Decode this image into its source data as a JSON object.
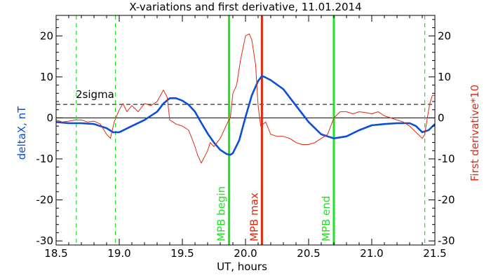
{
  "chart_data": {
    "type": "line",
    "title": "X-variations and first derivative, 11.01.2014",
    "xlabel": "UT, hours",
    "ylabel_left": "deltaX, nT",
    "ylabel_right": "First derivative*10",
    "xlim": [
      18.5,
      21.5
    ],
    "ylim": [
      -31,
      25
    ],
    "x_ticks": [
      "18.5",
      "19.0",
      "19.5",
      "20.0",
      "20.5",
      "21.0",
      "21.5"
    ],
    "y_ticks": [
      "-30",
      "-20",
      "-10",
      "0",
      "10",
      "20"
    ],
    "sigma_level": 3.3,
    "sigma_label": "2sigma",
    "zero_line": 0,
    "colors": {
      "deltaX": "#0a4fd6",
      "derivative": "#e02a10",
      "mpb": "#22e022",
      "mpb_max": "#e02a10",
      "axes": "#000000"
    },
    "dashed_markers": [
      18.66,
      18.97,
      21.42
    ],
    "vertical_markers": [
      {
        "label": "MPB begin",
        "x": 19.87,
        "color": "#22e022"
      },
      {
        "label": "MPB max",
        "x": 20.13,
        "color": "#e02a10"
      },
      {
        "label": "MPB end",
        "x": 20.7,
        "color": "#22e022"
      }
    ],
    "series": [
      {
        "name": "deltaX, nT",
        "color": "#0a4fd6",
        "x": [
          18.5,
          18.6,
          18.7,
          18.8,
          18.9,
          18.95,
          19.0,
          19.1,
          19.2,
          19.3,
          19.35,
          19.4,
          19.45,
          19.5,
          19.55,
          19.6,
          19.65,
          19.7,
          19.75,
          19.8,
          19.85,
          19.88,
          19.9,
          19.95,
          20.0,
          20.05,
          20.1,
          20.13,
          20.15,
          20.2,
          20.3,
          20.4,
          20.5,
          20.6,
          20.7,
          20.8,
          20.9,
          21.0,
          21.1,
          21.2,
          21.3,
          21.35,
          21.4,
          21.45,
          21.5
        ],
        "y": [
          -1.0,
          -1.3,
          -1.3,
          -1.5,
          -2.5,
          -3.5,
          -3.5,
          -2.0,
          -0.5,
          1.5,
          3.5,
          4.8,
          4.8,
          4.2,
          3.2,
          1.5,
          -1.2,
          -3.8,
          -6.0,
          -7.8,
          -8.8,
          -9.0,
          -8.6,
          -5.5,
          0.2,
          5.5,
          9.0,
          10.2,
          10.0,
          9.2,
          7.0,
          3.0,
          -1.0,
          -4.0,
          -5.0,
          -4.5,
          -3.0,
          -1.8,
          -1.5,
          -1.3,
          -1.3,
          -2.0,
          -3.5,
          -3.0,
          -1.5
        ]
      },
      {
        "name": "First derivative*10",
        "color": "#e02a10",
        "x": [
          18.5,
          18.55,
          18.6,
          18.65,
          18.7,
          18.75,
          18.8,
          18.85,
          18.9,
          18.93,
          18.96,
          19.0,
          19.03,
          19.06,
          19.1,
          19.15,
          19.2,
          19.25,
          19.3,
          19.35,
          19.38,
          19.4,
          19.45,
          19.5,
          19.55,
          19.6,
          19.62,
          19.65,
          19.7,
          19.72,
          19.75,
          19.8,
          19.83,
          19.86,
          19.88,
          19.9,
          19.93,
          19.96,
          20.0,
          20.03,
          20.05,
          20.08,
          20.1,
          20.12,
          20.14,
          20.16,
          20.2,
          20.25,
          20.3,
          20.35,
          20.4,
          20.45,
          20.5,
          20.55,
          20.6,
          20.65,
          20.7,
          20.75,
          20.8,
          20.85,
          20.9,
          20.95,
          21.0,
          21.05,
          21.1,
          21.15,
          21.2,
          21.25,
          21.3,
          21.35,
          21.4,
          21.42,
          21.44,
          21.46,
          21.48,
          21.5
        ],
        "y": [
          -0.5,
          -1.0,
          -0.8,
          -0.5,
          -0.5,
          -1.0,
          -0.8,
          -1.5,
          -4.0,
          -5.0,
          -1.0,
          2.0,
          3.5,
          1.5,
          3.0,
          1.5,
          3.5,
          3.0,
          4.0,
          6.8,
          5.0,
          -0.5,
          -1.5,
          -2.0,
          -3.0,
          -7.0,
          -9.0,
          -11.0,
          -8.0,
          -6.0,
          -7.0,
          -5.0,
          -3.0,
          -1.0,
          0.0,
          6.0,
          8.0,
          14.0,
          20.0,
          20.5,
          19.0,
          13.0,
          3.0,
          -2.0,
          -1.5,
          -1.0,
          -4.0,
          -4.5,
          -4.5,
          -5.0,
          -6.0,
          -6.5,
          -6.5,
          -6.0,
          -5.0,
          -4.0,
          0.0,
          1.5,
          1.5,
          1.0,
          1.5,
          1.3,
          1.0,
          1.5,
          0.5,
          0.0,
          -0.5,
          -1.0,
          -2.0,
          -3.5,
          -5.0,
          -4.0,
          0.0,
          3.5,
          5.5,
          5.5
        ]
      }
    ]
  }
}
